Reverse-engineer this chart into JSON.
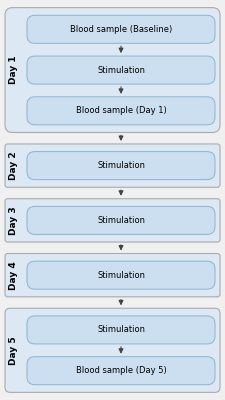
{
  "fig_width": 2.25,
  "fig_height": 4.0,
  "dpi": 100,
  "bg_color": "#f0f0f0",
  "section_bg": "#dce9f5",
  "section_border": "#aaaaaa",
  "box_bg": "#ccdff0",
  "box_border": "#8ab4d0",
  "text_color": "#000000",
  "arrow_color": "#444444",
  "label_color": "#000000",
  "sections": [
    {
      "day_label": "Day 1",
      "boxes": [
        "Blood sample (Baseline)",
        "Stimulation",
        "Blood sample (Day 1)"
      ]
    },
    {
      "day_label": "Day 2",
      "boxes": [
        "Stimulation"
      ]
    },
    {
      "day_label": "Day 3",
      "boxes": [
        "Stimulation"
      ]
    },
    {
      "day_label": "Day 4",
      "boxes": [
        "Stimulation"
      ]
    },
    {
      "day_label": "Day 5",
      "boxes": [
        "Stimulation",
        "Blood sample (Day 5)"
      ]
    }
  ]
}
